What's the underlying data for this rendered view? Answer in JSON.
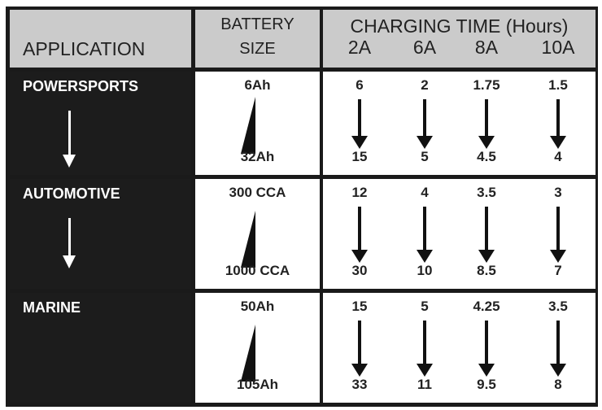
{
  "header": {
    "application": "APPLICATION",
    "battery_size_line1": "BATTERY",
    "battery_size_line2": "SIZE",
    "charging_time": "CHARGING TIME (Hours)",
    "currents": [
      "2A",
      "6A",
      "8A",
      "10A"
    ]
  },
  "rows": [
    {
      "application": "POWERSPORTS",
      "size_min": "6Ah",
      "size_max": "32Ah",
      "times_min": [
        "6",
        "2",
        "1.75",
        "1.5"
      ],
      "times_max": [
        "15",
        "5",
        "4.5",
        "4"
      ]
    },
    {
      "application": "AUTOMOTIVE",
      "size_min": "300 CCA",
      "size_max": "1000 CCA",
      "times_min": [
        "12",
        "4",
        "3.5",
        "3"
      ],
      "times_max": [
        "30",
        "10",
        "8.5",
        "7"
      ]
    },
    {
      "application": "MARINE",
      "size_min": "50Ah",
      "size_max": "105Ah",
      "times_min": [
        "15",
        "5",
        "4.25",
        "3.5"
      ],
      "times_max": [
        "33",
        "11",
        "9.5",
        "8"
      ]
    }
  ]
}
